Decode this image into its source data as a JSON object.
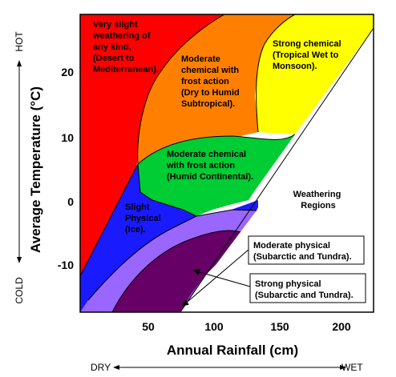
{
  "diagram": {
    "xlabel": "Annual Rainfall (cm)",
    "ylabel": "Average Temperature (°C)",
    "x_ticks": [
      "50",
      "100",
      "150",
      "200"
    ],
    "y_ticks": [
      "20",
      "10",
      "0",
      "-10"
    ],
    "x_axis_range": {
      "left": "DRY",
      "right": "WET"
    },
    "y_axis_range": {
      "top": "HOT",
      "bottom": "COLD"
    },
    "legend_title": [
      "Weathering",
      "Regions"
    ],
    "regions": [
      {
        "id": "very-slight",
        "color": "#ff0000",
        "label": [
          "Very slight",
          "weathering of",
          "any kind,",
          "(Desert to",
          "Mediterranean)."
        ]
      },
      {
        "id": "moderate-chemical-frost-dry",
        "color": "#ff8000",
        "label": [
          "Moderate",
          "chemical with",
          "frost action",
          "(Dry to Humid",
          "Subtropical)."
        ]
      },
      {
        "id": "strong-chemical",
        "color": "#ffff00",
        "label": [
          "Strong  chemical",
          "(Tropical Wet to",
          "Monsoon)."
        ]
      },
      {
        "id": "moderate-chemical-frost-continental",
        "color": "#00cc33",
        "label": [
          "Moderate chemical",
          "with frost action",
          "(Humid Continental)."
        ]
      },
      {
        "id": "slight-physical",
        "color": "#1a1aff",
        "label": [
          "Slight",
          "Physical",
          "(Ice)."
        ]
      },
      {
        "id": "moderate-physical",
        "color": "#9966ff",
        "label": [
          "Moderate physical",
          "(Subarctic and Tundra)."
        ]
      },
      {
        "id": "strong-physical",
        "color": "#660066",
        "label": [
          "Strong physical",
          "(Subarctic and Tundra)."
        ]
      }
    ]
  }
}
